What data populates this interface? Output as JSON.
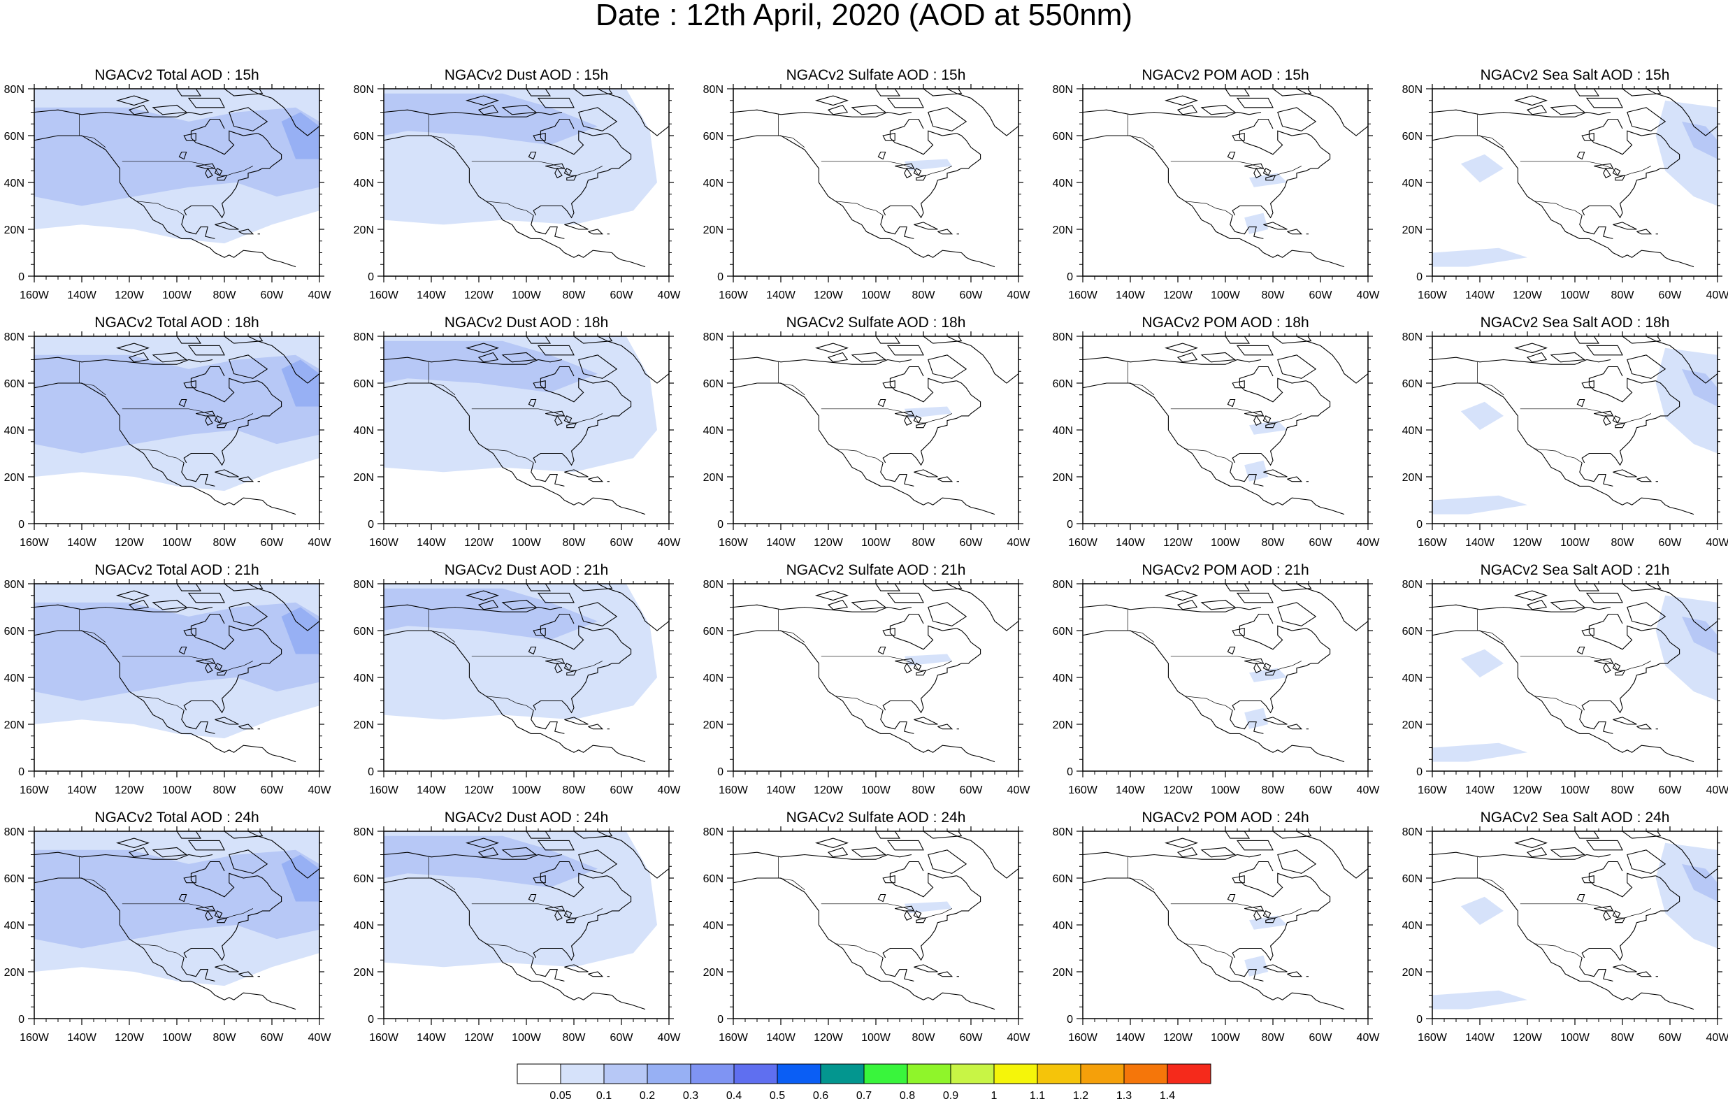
{
  "title": "Date : 12th April, 2020 (AOD at 550nm)",
  "panels": [
    {
      "title": "NGACv2 Total AOD : 15h",
      "species": "total"
    },
    {
      "title": "NGACv2 Dust AOD : 15h",
      "species": "dust"
    },
    {
      "title": "NGACv2 Sulfate AOD : 15h",
      "species": "sulfate"
    },
    {
      "title": "NGACv2 POM AOD : 15h",
      "species": "pom"
    },
    {
      "title": "NGACv2 Sea Salt AOD : 15h",
      "species": "seasalt"
    },
    {
      "title": "NGACv2 Total AOD : 18h",
      "species": "total"
    },
    {
      "title": "NGACv2 Dust AOD : 18h",
      "species": "dust"
    },
    {
      "title": "NGACv2 Sulfate AOD : 18h",
      "species": "sulfate"
    },
    {
      "title": "NGACv2 POM AOD : 18h",
      "species": "pom"
    },
    {
      "title": "NGACv2 Sea Salt AOD : 18h",
      "species": "seasalt"
    },
    {
      "title": "NGACv2 Total AOD : 21h",
      "species": "total"
    },
    {
      "title": "NGACv2 Dust AOD : 21h",
      "species": "dust"
    },
    {
      "title": "NGACv2 Sulfate AOD : 21h",
      "species": "sulfate"
    },
    {
      "title": "NGACv2 POM AOD : 21h",
      "species": "pom"
    },
    {
      "title": "NGACv2 Sea Salt AOD : 21h",
      "species": "seasalt"
    },
    {
      "title": "NGACv2 Total AOD : 24h",
      "species": "total"
    },
    {
      "title": "NGACv2 Dust AOD : 24h",
      "species": "dust"
    },
    {
      "title": "NGACv2 Sulfate AOD : 24h",
      "species": "sulfate"
    },
    {
      "title": "NGACv2 POM AOD : 24h",
      "species": "pom"
    },
    {
      "title": "NGACv2 Sea Salt  AOD : 24h",
      "species": "seasalt"
    }
  ],
  "lon_ticks": [
    "160W",
    "140W",
    "120W",
    "100W",
    "80W",
    "60W",
    "40W"
  ],
  "lat_ticks": [
    "0",
    "20N",
    "40N",
    "60N",
    "80N"
  ],
  "lon_range": [
    -160,
    -40
  ],
  "lat_range": [
    0,
    80
  ],
  "colorbar": {
    "colors": [
      "#ffffff",
      "#d6e2fa",
      "#b7c8f6",
      "#97b0f4",
      "#7f94f3",
      "#5f6ff0",
      "#0a5ef5",
      "#03968f",
      "#39f53c",
      "#8ff52a",
      "#c8f545",
      "#f5f50a",
      "#f5c40a",
      "#f5a00a",
      "#f5760a",
      "#f52a1b"
    ],
    "labels": [
      "0.05",
      "0.1",
      "0.2",
      "0.3",
      "0.4",
      "0.5",
      "0.6",
      "0.7",
      "0.8",
      "0.9",
      "1",
      "1.1",
      "1.2",
      "1.3",
      "1.4"
    ]
  }
}
